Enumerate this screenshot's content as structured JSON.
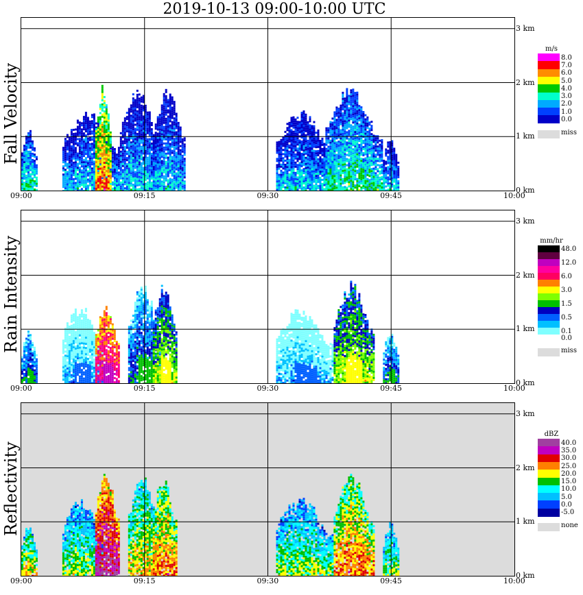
{
  "title": "2019-10-13   09:00-10:00 UTC",
  "time_ticks": [
    "09:00",
    "09:15",
    "09:30",
    "09:45",
    "10:00"
  ],
  "height_ticks": [
    "0 km",
    "1 km",
    "2 km",
    "3 km"
  ],
  "colors": {
    "grid": "#000000",
    "background_missing": "#dcdcdc"
  },
  "panels": [
    {
      "ylabel": "Fall Velocity",
      "legend_title": "m/s",
      "legend": [
        {
          "label": "8.0",
          "color": "#ff00ff"
        },
        {
          "label": "7.0",
          "color": "#ff0000"
        },
        {
          "label": "6.0",
          "color": "#ff8c00"
        },
        {
          "label": "5.0",
          "color": "#ffff00"
        },
        {
          "label": "4.0",
          "color": "#00c800"
        },
        {
          "label": "3.0",
          "color": "#00ffcc"
        },
        {
          "label": "2.0",
          "color": "#00aaff"
        },
        {
          "label": "1.0",
          "color": "#0040ff"
        },
        {
          "label": "0.0",
          "color": "#0000c8"
        }
      ],
      "missing_label": "miss"
    },
    {
      "ylabel": "Rain Intensity",
      "legend_title": "mm/hr",
      "legend": [
        {
          "label": "48.0",
          "color": "#000000"
        },
        {
          "label": "",
          "color": "#600040"
        },
        {
          "label": "12.0",
          "color": "#c000c0"
        },
        {
          "label": "",
          "color": "#ff00a0"
        },
        {
          "label": "6.0",
          "color": "#ff0060"
        },
        {
          "label": "",
          "color": "#ff8000"
        },
        {
          "label": "3.0",
          "color": "#ffff00"
        },
        {
          "label": "",
          "color": "#80ff00"
        },
        {
          "label": "1.5",
          "color": "#00c000"
        },
        {
          "label": "",
          "color": "#0000c0"
        },
        {
          "label": "0.5",
          "color": "#0060ff"
        },
        {
          "label": "",
          "color": "#00c0ff"
        },
        {
          "label": "0.1",
          "color": "#80ffff"
        },
        {
          "label": "0.0",
          "color": "#ffffff"
        }
      ],
      "missing_label": "miss"
    },
    {
      "ylabel": "Reflectivity",
      "legend_title": "dBZ",
      "legend": [
        {
          "label": "40.0",
          "color": "#a040a0"
        },
        {
          "label": "35.0",
          "color": "#c000c0"
        },
        {
          "label": "30.0",
          "color": "#e00000"
        },
        {
          "label": "25.0",
          "color": "#ff8000"
        },
        {
          "label": "20.0",
          "color": "#ffff00"
        },
        {
          "label": "15.0",
          "color": "#00c000"
        },
        {
          "label": "10.0",
          "color": "#00ffff"
        },
        {
          "label": "5.0",
          "color": "#00c0ff"
        },
        {
          "label": "0.0",
          "color": "#0040ff"
        },
        {
          "label": "-5.0",
          "color": "#0000a0"
        }
      ],
      "missing_label": "none"
    }
  ],
  "chart_data": [
    {
      "type": "heatmap",
      "title": "2019-10-13   09:00-10:00 UTC",
      "ylabel": "Fall Velocity",
      "xlim": [
        "09:00",
        "10:00"
      ],
      "ylim_km": [
        0,
        3.2
      ],
      "unit": "m/s",
      "grid": true,
      "echo_cells": [
        {
          "t_start": "09:00",
          "t_end": "09:02",
          "top_km": 1.2,
          "dominant": "2.0"
        },
        {
          "t_start": "09:05",
          "t_end": "09:12",
          "top_km": 1.5,
          "dominant": "1.0"
        },
        {
          "t_start": "09:09",
          "t_end": "09:11",
          "top_km": 2.0,
          "dominant": "5.0"
        },
        {
          "t_start": "09:12",
          "t_end": "09:17",
          "top_km": 1.9,
          "dominant": "1.0"
        },
        {
          "t_start": "09:16",
          "t_end": "09:20",
          "top_km": 1.9,
          "dominant": "1.0"
        },
        {
          "t_start": "09:31",
          "t_end": "09:38",
          "top_km": 1.5,
          "dominant": "1.0"
        },
        {
          "t_start": "09:37",
          "t_end": "09:44",
          "top_km": 1.95,
          "dominant": "2.0"
        },
        {
          "t_start": "09:44",
          "t_end": "09:46",
          "top_km": 1.0,
          "dominant": "1.0"
        }
      ]
    },
    {
      "type": "heatmap",
      "ylabel": "Rain Intensity",
      "xlim": [
        "09:00",
        "10:00"
      ],
      "ylim_km": [
        0,
        3.2
      ],
      "unit": "mm/hr",
      "grid": true,
      "echo_cells": [
        {
          "t_start": "09:00",
          "t_end": "09:02",
          "top_km": 1.0,
          "dominant": "0.5"
        },
        {
          "t_start": "09:05",
          "t_end": "09:10",
          "top_km": 1.5,
          "dominant": "0.1"
        },
        {
          "t_start": "09:09",
          "t_end": "09:12",
          "top_km": 1.5,
          "dominant": "6.0"
        },
        {
          "t_start": "09:13",
          "t_end": "09:17",
          "top_km": 1.9,
          "dominant": "0.5"
        },
        {
          "t_start": "09:16",
          "t_end": "09:19",
          "top_km": 1.9,
          "dominant": "1.5"
        },
        {
          "t_start": "09:31",
          "t_end": "09:38",
          "top_km": 1.4,
          "dominant": "0.1"
        },
        {
          "t_start": "09:38",
          "t_end": "09:43",
          "top_km": 1.9,
          "dominant": "1.5"
        },
        {
          "t_start": "09:44",
          "t_end": "09:46",
          "top_km": 1.0,
          "dominant": "0.5"
        }
      ]
    },
    {
      "type": "heatmap",
      "ylabel": "Reflectivity",
      "xlim": [
        "09:00",
        "10:00"
      ],
      "ylim_km": [
        0,
        3.2
      ],
      "unit": "dBZ",
      "grid": true,
      "echo_cells": [
        {
          "t_start": "09:00",
          "t_end": "09:02",
          "top_km": 1.0,
          "dominant": "15.0"
        },
        {
          "t_start": "09:05",
          "t_end": "09:10",
          "top_km": 1.5,
          "dominant": "10.0"
        },
        {
          "t_start": "09:09",
          "t_end": "09:12",
          "top_km": 2.0,
          "dominant": "30.0"
        },
        {
          "t_start": "09:13",
          "t_end": "09:17",
          "top_km": 1.9,
          "dominant": "15.0"
        },
        {
          "t_start": "09:16",
          "t_end": "09:19",
          "top_km": 1.9,
          "dominant": "20.0"
        },
        {
          "t_start": "09:31",
          "t_end": "09:38",
          "top_km": 1.5,
          "dominant": "10.0"
        },
        {
          "t_start": "09:38",
          "t_end": "09:43",
          "top_km": 1.95,
          "dominant": "20.0"
        },
        {
          "t_start": "09:44",
          "t_end": "09:46",
          "top_km": 1.0,
          "dominant": "10.0"
        }
      ]
    }
  ]
}
